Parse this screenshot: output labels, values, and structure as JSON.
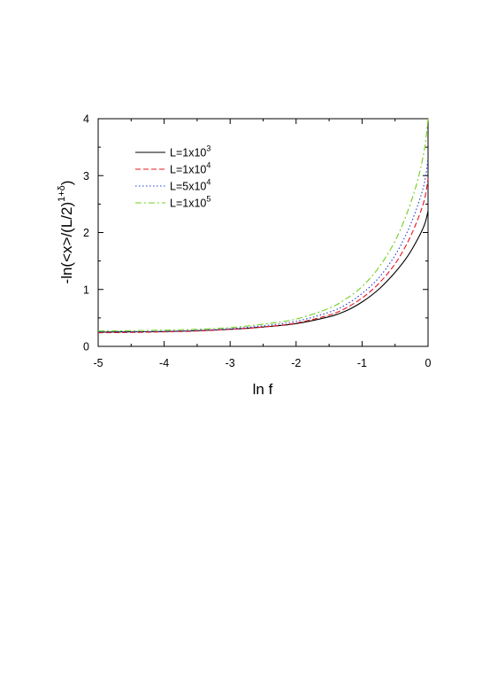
{
  "chart_data": {
    "type": "line",
    "xlabel": "ln f",
    "ylabel": {
      "base": "-ln(<x>/(L/2)",
      "superscript": "1+δ",
      "close": ")"
    },
    "xlim": [
      -5,
      0
    ],
    "ylim": [
      0,
      4
    ],
    "x_ticks": [
      -5,
      -4,
      -3,
      -2,
      -1,
      0
    ],
    "y_ticks": [
      0,
      1,
      2,
      3,
      4
    ],
    "x_tick_labels": [
      "-5",
      "-4",
      "-3",
      "-2",
      "-1",
      "0"
    ],
    "y_tick_labels": [
      "0",
      "1",
      "2",
      "3",
      "4"
    ],
    "grid": false,
    "legend_position": "top-left",
    "series": [
      {
        "name": "L=1x10",
        "name_superscript": "3",
        "color": "#000000",
        "dash": "solid",
        "points": [
          [
            -5,
            0.25
          ],
          [
            -4.5,
            0.255
          ],
          [
            -4,
            0.26
          ],
          [
            -3.5,
            0.275
          ],
          [
            -3,
            0.3
          ],
          [
            -2.5,
            0.34
          ],
          [
            -2,
            0.4
          ],
          [
            -1.5,
            0.52
          ],
          [
            -1.25,
            0.62
          ],
          [
            -1,
            0.78
          ],
          [
            -0.75,
            1.0
          ],
          [
            -0.5,
            1.3
          ],
          [
            -0.3,
            1.6
          ],
          [
            -0.15,
            1.9
          ],
          [
            -0.05,
            2.15
          ],
          [
            0,
            2.38
          ]
        ]
      },
      {
        "name": "L=1x10",
        "name_superscript": "4",
        "color": "#e8141e",
        "dash": "dashed",
        "points": [
          [
            -5,
            0.24
          ],
          [
            -4.5,
            0.245
          ],
          [
            -4,
            0.255
          ],
          [
            -3.5,
            0.27
          ],
          [
            -3,
            0.3
          ],
          [
            -2.5,
            0.34
          ],
          [
            -2,
            0.41
          ],
          [
            -1.5,
            0.55
          ],
          [
            -1.25,
            0.67
          ],
          [
            -1,
            0.85
          ],
          [
            -0.75,
            1.1
          ],
          [
            -0.5,
            1.45
          ],
          [
            -0.3,
            1.85
          ],
          [
            -0.15,
            2.25
          ],
          [
            -0.05,
            2.6
          ],
          [
            0,
            2.95
          ]
        ]
      },
      {
        "name": "L=5x10",
        "name_superscript": "4",
        "color": "#1f3cd6",
        "dash": "dotted",
        "points": [
          [
            -5,
            0.25
          ],
          [
            -4.5,
            0.255
          ],
          [
            -4,
            0.265
          ],
          [
            -3.5,
            0.28
          ],
          [
            -3,
            0.31
          ],
          [
            -2.5,
            0.36
          ],
          [
            -2,
            0.44
          ],
          [
            -1.5,
            0.6
          ],
          [
            -1.25,
            0.73
          ],
          [
            -1,
            0.93
          ],
          [
            -0.75,
            1.2
          ],
          [
            -0.5,
            1.6
          ],
          [
            -0.3,
            2.05
          ],
          [
            -0.15,
            2.5
          ],
          [
            -0.05,
            2.9
          ],
          [
            0,
            3.3
          ]
        ]
      },
      {
        "name": "L=1x10",
        "name_superscript": "5",
        "color": "#6fd11b",
        "dash": "dashdot",
        "points": [
          [
            -5,
            0.27
          ],
          [
            -4.5,
            0.275
          ],
          [
            -4,
            0.285
          ],
          [
            -3.5,
            0.3
          ],
          [
            -3,
            0.33
          ],
          [
            -2.5,
            0.39
          ],
          [
            -2,
            0.48
          ],
          [
            -1.5,
            0.67
          ],
          [
            -1.25,
            0.83
          ],
          [
            -1,
            1.05
          ],
          [
            -0.75,
            1.38
          ],
          [
            -0.5,
            1.85
          ],
          [
            -0.3,
            2.4
          ],
          [
            -0.15,
            2.95
          ],
          [
            -0.05,
            3.5
          ],
          [
            0,
            4.0
          ]
        ]
      }
    ]
  }
}
